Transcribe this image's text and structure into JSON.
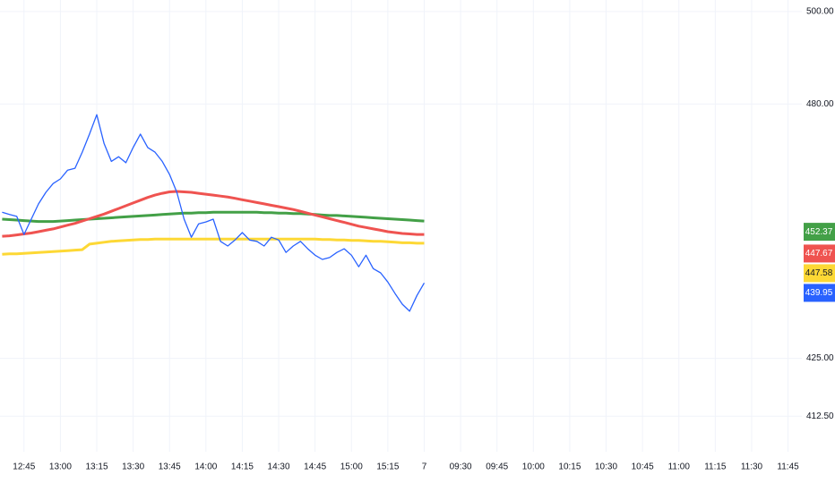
{
  "chart_data": {
    "type": "line",
    "categories": [
      "12:45",
      "13:00",
      "13:15",
      "13:30",
      "13:45",
      "14:00",
      "14:15",
      "14:30",
      "14:45",
      "15:00",
      "15:15",
      "7",
      "09:30",
      "09:45",
      "10:00",
      "10:15",
      "10:30",
      "10:45",
      "11:00",
      "11:15",
      "11:30",
      "11:45"
    ],
    "xlim": [
      -0.66,
      21.38
    ],
    "ylim": [
      404.8,
      502.5
    ],
    "yticks": [
      {
        "value": 500,
        "label": "500.00"
      },
      {
        "value": 480,
        "label": "480.00"
      },
      {
        "value": 425,
        "label": "425.00"
      },
      {
        "value": 412.5,
        "label": "412.50"
      }
    ],
    "grid": true,
    "x": [
      -0.6,
      -0.4,
      -0.2,
      0,
      0.2,
      0.4,
      0.6,
      0.8,
      1,
      1.2,
      1.4,
      1.6,
      1.8,
      2,
      2.2,
      2.4,
      2.6,
      2.8,
      3,
      3.2,
      3.4,
      3.6,
      3.8,
      4,
      4.2,
      4.4,
      4.6,
      4.8,
      5,
      5.2,
      5.4,
      5.6,
      5.8,
      6,
      6.2,
      6.4,
      6.6,
      6.8,
      7,
      7.2,
      7.4,
      7.6,
      7.8,
      8,
      8.2,
      8.4,
      8.6,
      8.8,
      9,
      9.2,
      9.4,
      9.6,
      9.8,
      10,
      10.2,
      10.4,
      10.6,
      10.8,
      11
    ],
    "series": [
      {
        "color": "#43a047",
        "width": 3,
        "last": 452.37,
        "values": [
          455.1,
          455.0,
          454.9,
          454.8,
          454.7,
          454.6,
          454.6,
          454.6,
          454.7,
          454.8,
          454.9,
          455.0,
          455.1,
          455.2,
          455.3,
          455.4,
          455.5,
          455.6,
          455.7,
          455.8,
          455.9,
          456.0,
          456.1,
          456.2,
          456.3,
          456.4,
          456.4,
          456.5,
          456.5,
          456.6,
          456.6,
          456.6,
          456.6,
          456.6,
          456.6,
          456.6,
          456.5,
          456.5,
          456.4,
          456.4,
          456.3,
          456.3,
          456.2,
          456.1,
          456.0,
          455.9,
          455.9,
          455.8,
          455.7,
          455.6,
          455.5,
          455.4,
          455.3,
          455.2,
          455.1,
          455.0,
          454.9,
          454.8,
          454.7
        ]
      },
      {
        "color": "#ef5350",
        "width": 3,
        "last": 447.67,
        "values": [
          451.4,
          451.5,
          451.7,
          451.9,
          452.1,
          452.4,
          452.7,
          453.0,
          453.4,
          453.8,
          454.2,
          454.7,
          455.2,
          455.7,
          456.2,
          456.8,
          457.4,
          458.0,
          458.6,
          459.2,
          459.8,
          460.3,
          460.7,
          461.0,
          461.1,
          461.0,
          460.9,
          460.7,
          460.5,
          460.3,
          460.1,
          459.9,
          459.6,
          459.3,
          459.0,
          458.7,
          458.4,
          458.1,
          457.8,
          457.5,
          457.2,
          456.8,
          456.4,
          456.0,
          455.6,
          455.2,
          454.8,
          454.4,
          454.0,
          453.6,
          453.3,
          453.0,
          452.7,
          452.4,
          452.2,
          452.0,
          451.9,
          451.8,
          451.8
        ]
      },
      {
        "color": "#fdd835",
        "width": 3,
        "last": 447.58,
        "values": [
          447.5,
          447.6,
          447.6,
          447.7,
          447.8,
          447.9,
          448.0,
          448.1,
          448.2,
          448.3,
          448.4,
          448.5,
          449.7,
          449.9,
          450.1,
          450.3,
          450.4,
          450.5,
          450.6,
          450.7,
          450.7,
          450.8,
          450.8,
          450.8,
          450.8,
          450.8,
          450.8,
          450.8,
          450.8,
          450.8,
          450.8,
          450.8,
          450.8,
          450.8,
          450.8,
          450.8,
          450.8,
          450.8,
          450.8,
          450.8,
          450.8,
          450.8,
          450.8,
          450.8,
          450.7,
          450.7,
          450.6,
          450.6,
          450.5,
          450.5,
          450.4,
          450.3,
          450.3,
          450.2,
          450.1,
          450.0,
          450.0,
          449.9,
          449.9
        ]
      },
      {
        "color": "#2962ff",
        "width": 1.3,
        "last": 439.95,
        "values": [
          456.6,
          456.1,
          455.7,
          451.8,
          455.1,
          458.4,
          460.9,
          462.8,
          463.8,
          465.7,
          466.1,
          469.6,
          473.5,
          477.7,
          471.5,
          467.6,
          468.6,
          467.3,
          470.6,
          473.5,
          470.6,
          469.6,
          467.6,
          464.8,
          460.9,
          455.1,
          451.2,
          454.1,
          454.5,
          455.1,
          450.3,
          449.3,
          450.6,
          452.2,
          450.6,
          450.3,
          449.3,
          451.2,
          450.6,
          447.9,
          449.3,
          450.3,
          448.7,
          447.3,
          446.4,
          446.8,
          447.9,
          448.7,
          447.3,
          444.8,
          447.3,
          444.4,
          443.5,
          441.5,
          439.0,
          436.7,
          435.2,
          438.6,
          441.3
        ]
      }
    ]
  }
}
